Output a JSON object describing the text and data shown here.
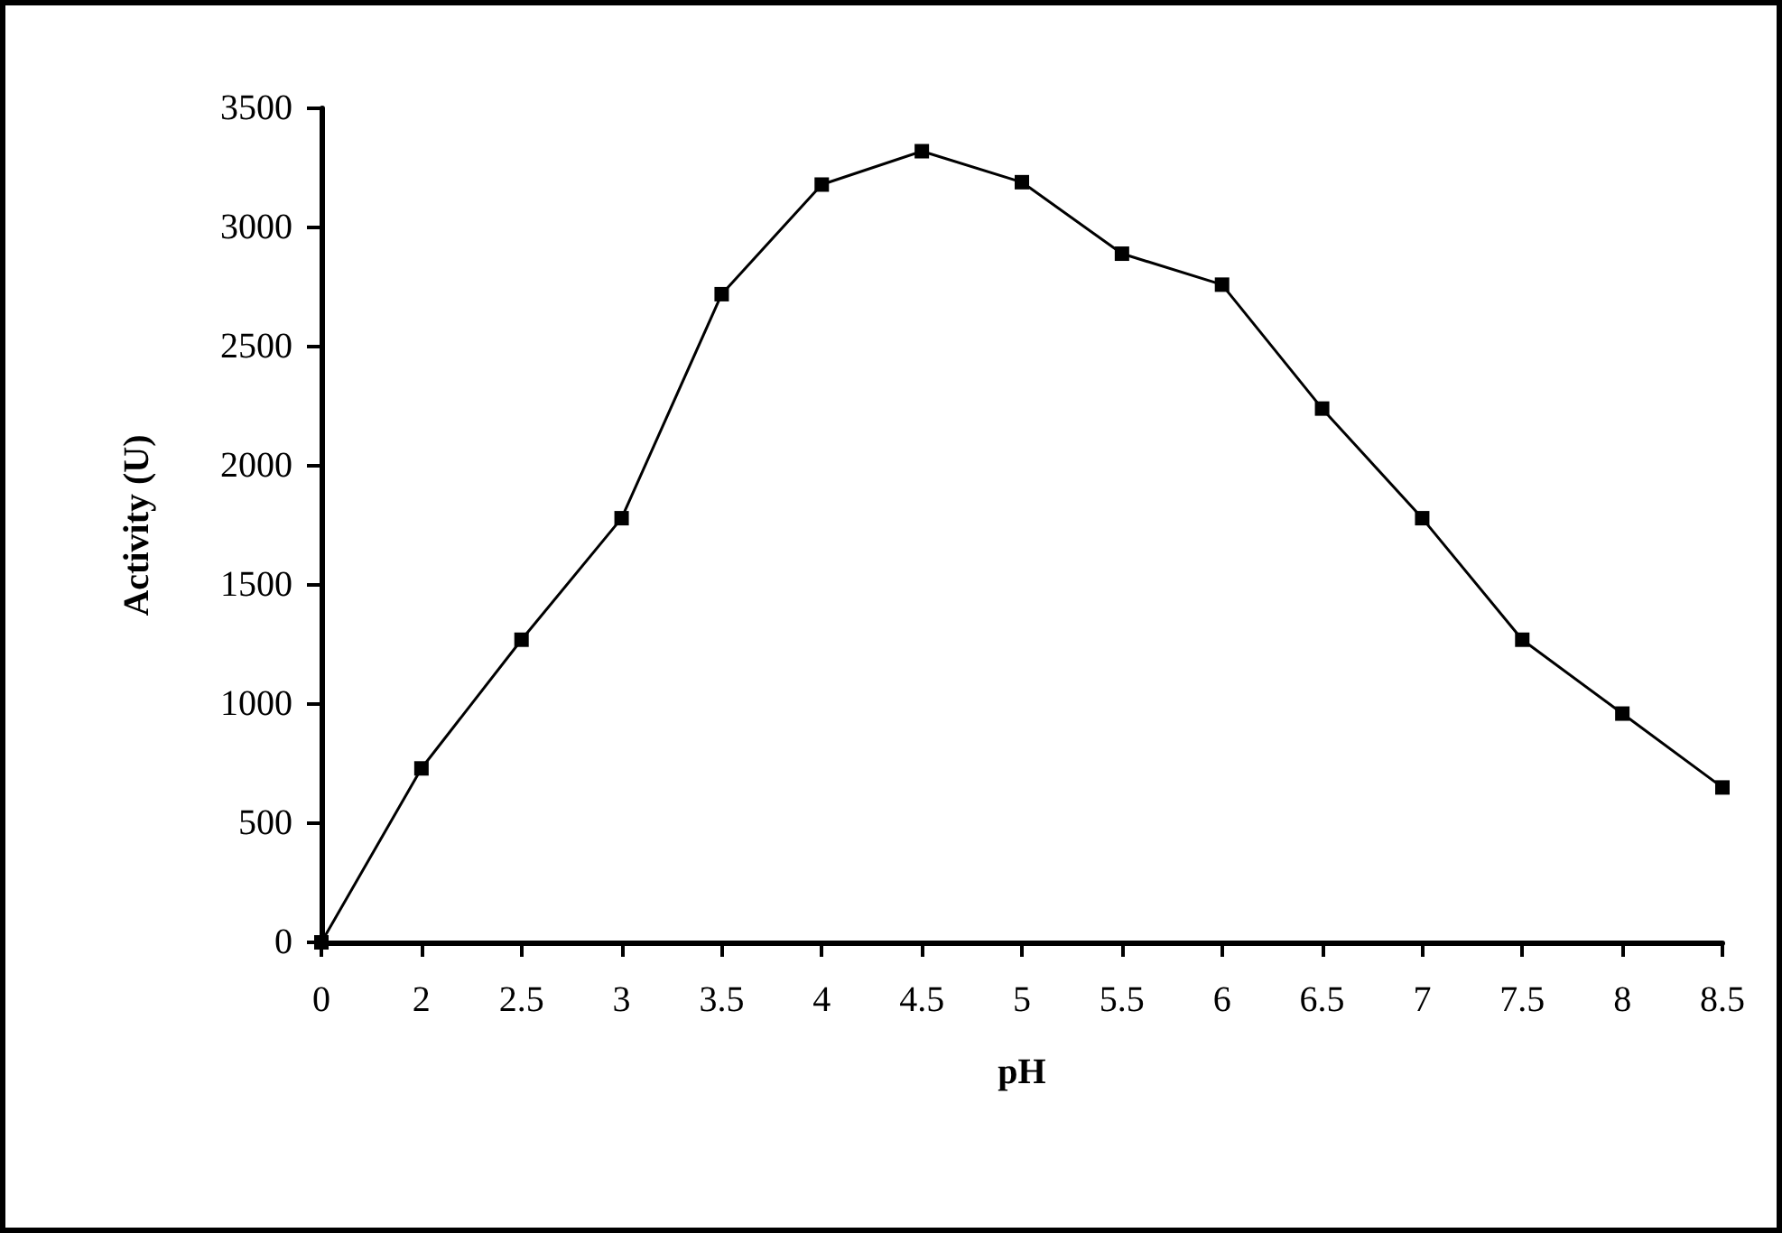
{
  "chart_data": {
    "type": "line",
    "xlabel": "pH",
    "ylabel": "Activity (U)",
    "categories": [
      "0",
      "2",
      "2.5",
      "3",
      "3.5",
      "4",
      "4.5",
      "5",
      "5.5",
      "6",
      "6.5",
      "7",
      "7.5",
      "8",
      "8.5"
    ],
    "series": [
      {
        "color": "#000000",
        "values": [
          0,
          730,
          1270,
          1780,
          2720,
          3180,
          3320,
          3190,
          2890,
          2760,
          2240,
          1780,
          1270,
          960,
          650
        ]
      }
    ],
    "ylim": [
      0,
      3500
    ],
    "yticks": [
      0,
      500,
      1000,
      1500,
      2000,
      2500,
      3000,
      3500
    ],
    "grid": false,
    "marker": "square",
    "line_style": "solid"
  }
}
